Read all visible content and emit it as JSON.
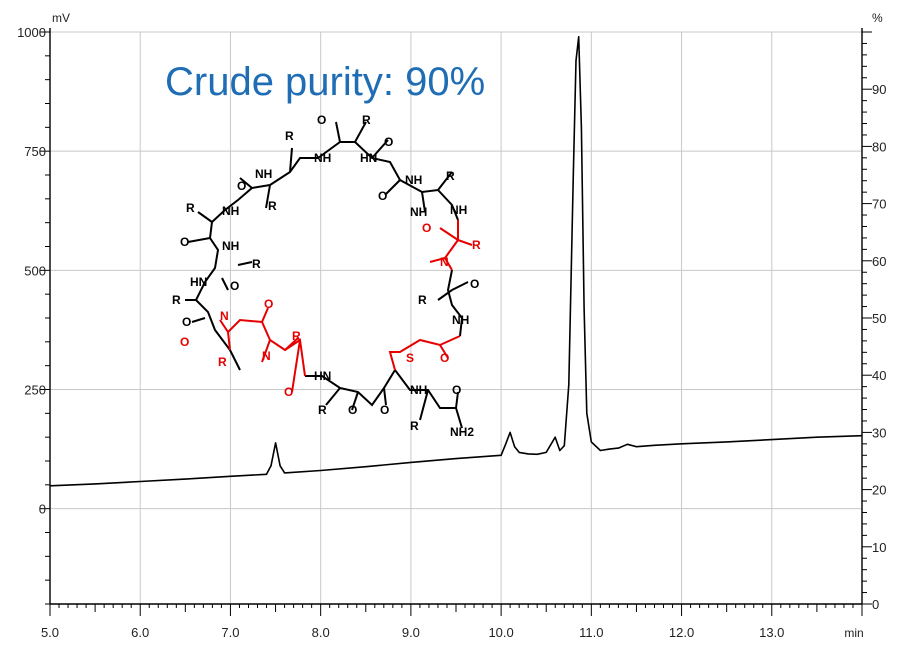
{
  "chart_data": {
    "type": "line",
    "title": "Crude purity: 90%",
    "xlabel": "min",
    "ylabel": "mV",
    "y2label": "%",
    "xlim": [
      5.0,
      14.0
    ],
    "ylim": [
      -200,
      1000
    ],
    "y2lim": [
      0,
      100
    ],
    "grid": true,
    "x_ticks": [
      "5.0",
      "6.0",
      "7.0",
      "8.0",
      "9.0",
      "10.0",
      "11.0",
      "12.0",
      "13.0"
    ],
    "y_ticks": [
      "0",
      "250",
      "500",
      "750",
      "1000"
    ],
    "y2_ticks": [
      "0",
      "10",
      "20",
      "30",
      "40",
      "50",
      "60",
      "70",
      "80",
      "90"
    ],
    "series": [
      {
        "x": [
          5.0,
          5.5,
          6.0,
          6.5,
          7.0,
          7.4,
          7.45,
          7.5,
          7.55,
          7.6,
          8.0,
          8.5,
          9.0,
          9.5,
          10.0,
          10.05,
          10.1,
          10.15,
          10.2,
          10.3,
          10.4,
          10.5,
          10.6,
          10.65,
          10.7,
          10.75,
          10.8,
          10.83,
          10.86,
          10.89,
          10.92,
          10.95,
          11.0,
          11.1,
          11.2,
          11.3,
          11.4,
          11.5,
          11.7,
          12.0,
          12.5,
          13.0,
          13.5,
          14.0
        ],
        "y": [
          48,
          52,
          57,
          62,
          68,
          72,
          90,
          138,
          90,
          75,
          80,
          88,
          97,
          105,
          112,
          135,
          160,
          130,
          118,
          115,
          114,
          118,
          150,
          122,
          132,
          260,
          700,
          940,
          990,
          800,
          420,
          200,
          140,
          122,
          125,
          127,
          135,
          130,
          133,
          136,
          140,
          145,
          150,
          153
        ]
      }
    ]
  },
  "structure": {
    "labels": {
      "r": "R",
      "nh": "NH",
      "hn": "HN",
      "n": "N",
      "o": "O",
      "s": "S",
      "nh2": "NH2"
    }
  }
}
